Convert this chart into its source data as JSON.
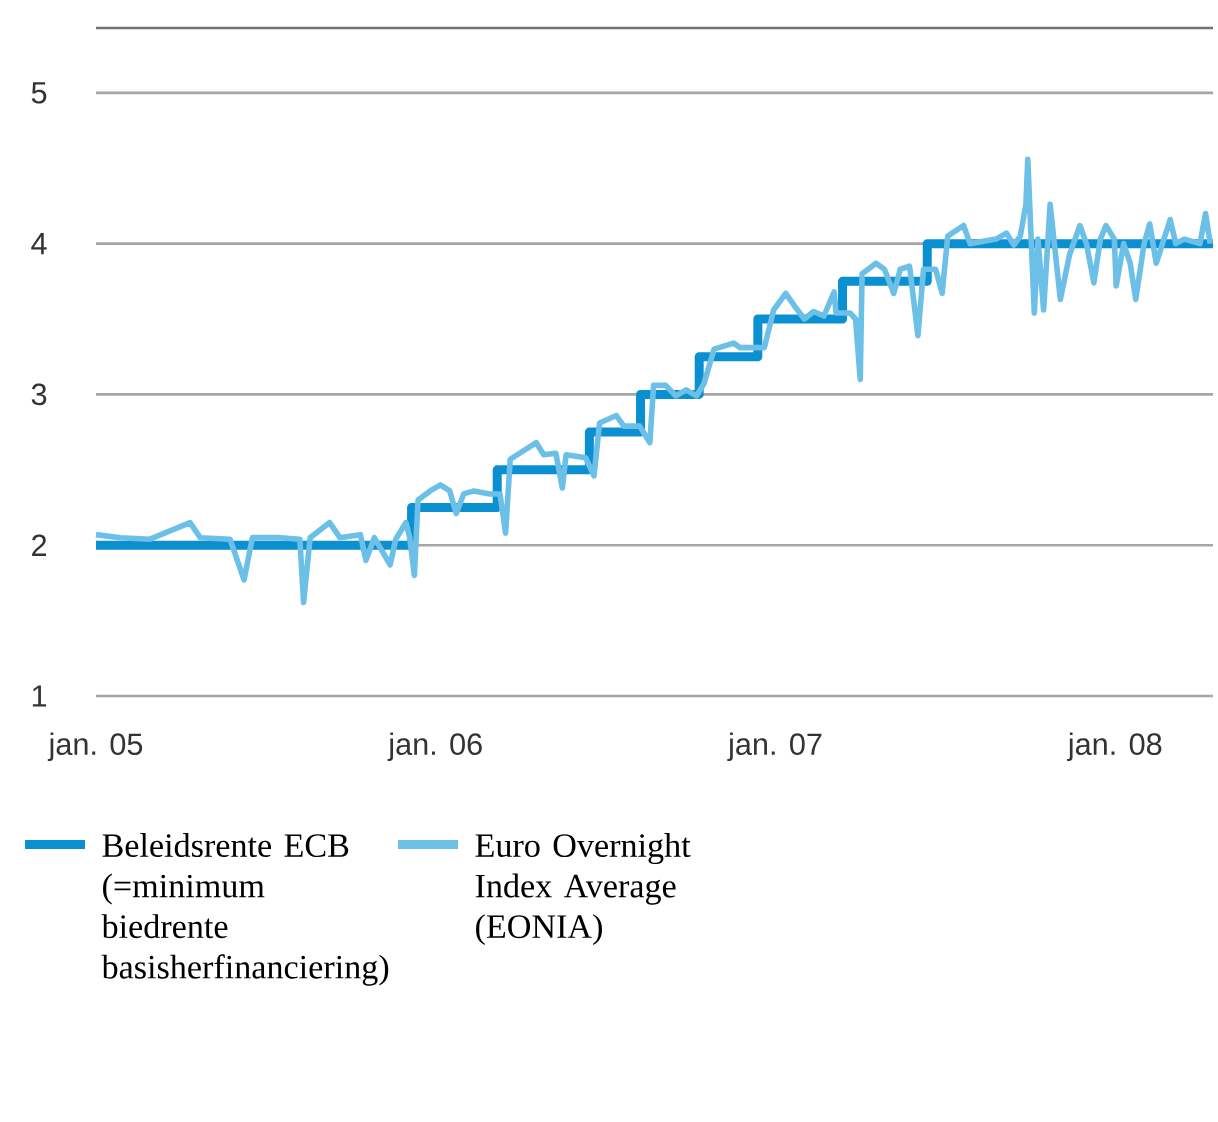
{
  "chart_data": {
    "type": "step",
    "xlim": [
      "2005-01-01",
      "2008-04-15"
    ],
    "xticks": [
      {
        "value": "2005-01-01",
        "label": "jan. 05"
      },
      {
        "value": "2006-01-01",
        "label": "jan. 06"
      },
      {
        "value": "2007-01-01",
        "label": "jan. 07"
      },
      {
        "value": "2008-01-01",
        "label": "jan. 08"
      }
    ],
    "ylim": [
      1,
      5.43
    ],
    "yticks": [
      1,
      2,
      3,
      4,
      5
    ],
    "grid": "y",
    "legend": "bottom",
    "series": [
      {
        "name": "Beleidsrente ECB (=minimum biedrente basisherfinanciering)",
        "color": "#0a8fd0",
        "type": "step",
        "x": [
          "2005-01-01",
          "2005-12-06",
          "2006-03-08",
          "2006-06-15",
          "2006-08-09",
          "2006-10-11",
          "2006-12-13",
          "2007-03-14",
          "2007-06-13",
          "2008-04-15"
        ],
        "values": [
          2.0,
          2.25,
          2.5,
          2.75,
          3.0,
          3.25,
          3.5,
          3.75,
          4.0,
          4.0
        ]
      },
      {
        "name": "Euro Overnight Index Average (EONIA)",
        "color": "#6cc0e8",
        "type": "line",
        "x": [
          "2005-01-01",
          "2005-01-27",
          "2005-02-28",
          "2005-04-12",
          "2005-04-23",
          "2005-05-25",
          "2005-06-09",
          "2005-06-18",
          "2005-07-18",
          "2005-08-08",
          "2005-08-12",
          "2005-08-19",
          "2005-09-09",
          "2005-09-20",
          "2005-10-12",
          "2005-10-18",
          "2005-10-27",
          "2005-11-13",
          "2005-11-19",
          "2005-11-30",
          "2005-12-04",
          "2005-12-09",
          "2005-12-13",
          "2005-12-26",
          "2006-01-06",
          "2006-01-16",
          "2006-01-23",
          "2006-01-31",
          "2006-02-11",
          "2006-02-28",
          "2006-03-11",
          "2006-03-17",
          "2006-03-22",
          "2006-04-19",
          "2006-04-27",
          "2006-05-10",
          "2006-05-17",
          "2006-05-21",
          "2006-06-11",
          "2006-06-20",
          "2006-06-26",
          "2006-07-14",
          "2006-07-22",
          "2006-08-08",
          "2006-08-19",
          "2006-08-23",
          "2006-09-05",
          "2006-09-16",
          "2006-09-27",
          "2006-10-08",
          "2006-10-16",
          "2006-10-27",
          "2006-11-17",
          "2006-11-24",
          "2006-12-20",
          "2006-12-30",
          "2007-01-12",
          "2007-01-21",
          "2007-02-01",
          "2007-02-11",
          "2007-02-22",
          "2007-03-05",
          "2007-03-07",
          "2007-03-22",
          "2007-03-28",
          "2007-04-02",
          "2007-04-04",
          "2007-04-19",
          "2007-04-28",
          "2007-05-08",
          "2007-05-15",
          "2007-05-25",
          "2007-06-03",
          "2007-06-09",
          "2007-06-22",
          "2007-06-29",
          "2007-07-05",
          "2007-07-22",
          "2007-07-29",
          "2007-08-26",
          "2007-09-06",
          "2007-09-14",
          "2007-09-21",
          "2007-09-27",
          "2007-09-29",
          "2007-10-06",
          "2007-10-10",
          "2007-10-16",
          "2007-10-23",
          "2007-11-03",
          "2007-11-13",
          "2007-11-24",
          "2007-12-01",
          "2007-12-09",
          "2007-12-16",
          "2007-12-22",
          "2007-12-31",
          "2008-01-02",
          "2008-01-10",
          "2008-01-17",
          "2008-01-23",
          "2008-02-01",
          "2008-02-07",
          "2008-02-14",
          "2008-02-29",
          "2008-03-06",
          "2008-03-15",
          "2008-04-01",
          "2008-04-07",
          "2008-04-12"
        ],
        "values": [
          2.07,
          2.05,
          2.04,
          2.15,
          2.05,
          2.04,
          1.77,
          2.05,
          2.05,
          2.04,
          1.62,
          2.05,
          2.15,
          2.05,
          2.07,
          1.9,
          2.05,
          1.87,
          2.04,
          2.15,
          2.05,
          1.8,
          2.3,
          2.36,
          2.4,
          2.36,
          2.21,
          2.34,
          2.36,
          2.34,
          2.34,
          2.08,
          2.57,
          2.68,
          2.6,
          2.61,
          2.38,
          2.6,
          2.58,
          2.46,
          2.81,
          2.86,
          2.79,
          2.79,
          2.68,
          3.06,
          3.06,
          2.99,
          3.03,
          2.99,
          3.07,
          3.3,
          3.34,
          3.31,
          3.31,
          3.56,
          3.67,
          3.59,
          3.5,
          3.55,
          3.52,
          3.68,
          3.54,
          3.54,
          3.5,
          3.1,
          3.8,
          3.87,
          3.83,
          3.67,
          3.83,
          3.85,
          3.39,
          3.83,
          3.83,
          3.67,
          4.05,
          4.12,
          4.0,
          4.03,
          4.07,
          3.99,
          4.05,
          4.26,
          4.56,
          3.54,
          4.03,
          3.56,
          4.26,
          3.63,
          3.93,
          4.12,
          4.0,
          3.74,
          4.03,
          4.12,
          4.03,
          3.72,
          4.0,
          3.87,
          3.63,
          4.0,
          4.13,
          3.87,
          4.16,
          4.0,
          4.03,
          4.0,
          4.2,
          4.0
        ]
      }
    ]
  }
}
